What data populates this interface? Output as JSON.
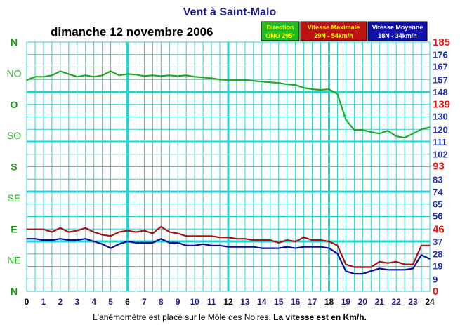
{
  "chart_data": {
    "type": "line",
    "title": "Vent à Saint-Malo",
    "date": "dimanche 12 novembre 2006",
    "footer": "L'anémomètre est placé sur le Môle des Noires.",
    "footer_bold": "La vitesse est en Km/h.",
    "x_ticks": [
      "0",
      "1",
      "2",
      "3",
      "4",
      "5",
      "6",
      "7",
      "8",
      "9",
      "10",
      "11",
      "12",
      "13",
      "14",
      "15",
      "16",
      "17",
      "18",
      "19",
      "20",
      "21",
      "22",
      "23",
      "24"
    ],
    "xlim": [
      0,
      24
    ],
    "left_axis": {
      "ticks": [
        "N",
        "NE",
        "E",
        "SE",
        "S",
        "SO",
        "O",
        "NO",
        "N"
      ],
      "major": [
        "N",
        "E",
        "S",
        "O",
        "N"
      ]
    },
    "right_axis": {
      "ylim": [
        0,
        185
      ],
      "ticks": [
        "0",
        "9",
        "19",
        "28",
        "37",
        "46",
        "56",
        "65",
        "74",
        "83",
        "93",
        "102",
        "111",
        "120",
        "130",
        "139",
        "148",
        "157",
        "167",
        "176",
        "185"
      ],
      "red_ticks": [
        "0",
        "46",
        "93",
        "139",
        "185"
      ]
    },
    "legend": [
      {
        "title": "Direction",
        "value": "ONO 295°",
        "bg": "#22bb22",
        "fg": "#ffff00"
      },
      {
        "title": "Vitesse Maximale",
        "value": "29N - 54km/h",
        "bg": "#bb1111",
        "fg": "#ffff00"
      },
      {
        "title": "Vitesse Moyenne",
        "value": "18N - 34km/h",
        "bg": "#1111aa",
        "fg": "#ffffff"
      }
    ],
    "colors": {
      "direction": "#22a822",
      "max": "#aa1111",
      "mean": "#0a0a99",
      "grid": "#33cccc",
      "grid_major": "#22d4d4"
    },
    "series": [
      {
        "name": "Direction",
        "unit": "degrees",
        "x": [
          0,
          0.5,
          1,
          1.5,
          2,
          2.5,
          3,
          3.5,
          4,
          4.5,
          5,
          5.5,
          6,
          6.5,
          7,
          7.5,
          8,
          8.5,
          9,
          9.5,
          10,
          10.5,
          11,
          11.5,
          12,
          12.5,
          13,
          13.5,
          14,
          14.5,
          15,
          15.5,
          16,
          16.5,
          17,
          17.5,
          18,
          18.5,
          19,
          19.5,
          20,
          20.5,
          21,
          21.5,
          22,
          22.5,
          23,
          23.5,
          24
        ],
        "values": [
          305,
          310,
          310,
          312,
          318,
          314,
          310,
          312,
          310,
          312,
          318,
          312,
          314,
          313,
          311,
          312,
          311,
          312,
          311,
          312,
          310,
          309,
          308,
          306,
          305,
          305,
          305,
          304,
          303,
          302,
          301,
          299,
          298,
          294,
          292,
          291,
          292,
          285,
          248,
          233,
          233,
          230,
          228,
          232,
          224,
          222,
          228,
          234,
          237
        ]
      },
      {
        "name": "Vitesse Maximale",
        "unit": "km/h",
        "x": [
          0,
          0.5,
          1,
          1.5,
          2,
          2.5,
          3,
          3.5,
          4,
          4.5,
          5,
          5.5,
          6,
          6.5,
          7,
          7.5,
          8,
          8.5,
          9,
          9.5,
          10,
          10.5,
          11,
          11.5,
          12,
          12.5,
          13,
          13.5,
          14,
          14.5,
          15,
          15.5,
          16,
          16.5,
          17,
          17.5,
          18,
          18.5,
          19,
          19.5,
          20,
          20.5,
          21,
          21.5,
          22,
          22.5,
          23,
          23.5,
          24
        ],
        "values": [
          46,
          46,
          46,
          44,
          47,
          44,
          45,
          47,
          44,
          42,
          41,
          44,
          45,
          44,
          45,
          43,
          48,
          44,
          43,
          41,
          41,
          41,
          41,
          40,
          40,
          39,
          39,
          38,
          38,
          38,
          36,
          38,
          37,
          40,
          38,
          38,
          37,
          34,
          20,
          18,
          18,
          18,
          22,
          21,
          22,
          20,
          20,
          34,
          34
        ]
      },
      {
        "name": "Vitesse Moyenne",
        "unit": "km/h",
        "x": [
          0,
          0.5,
          1,
          1.5,
          2,
          2.5,
          3,
          3.5,
          4,
          4.5,
          5,
          5.5,
          6,
          6.5,
          7,
          7.5,
          8,
          8.5,
          9,
          9.5,
          10,
          10.5,
          11,
          11.5,
          12,
          12.5,
          13,
          13.5,
          14,
          14.5,
          15,
          15.5,
          16,
          16.5,
          17,
          17.5,
          18,
          18.5,
          19,
          19.5,
          20,
          20.5,
          21,
          21.5,
          22,
          22.5,
          23,
          23.5,
          24
        ],
        "values": [
          39,
          39,
          38,
          38,
          39,
          38,
          38,
          39,
          37,
          35,
          32,
          35,
          37,
          36,
          36,
          36,
          39,
          36,
          36,
          34,
          34,
          35,
          34,
          34,
          33,
          33,
          33,
          33,
          32,
          32,
          32,
          33,
          32,
          33,
          33,
          33,
          32,
          28,
          15,
          13,
          13,
          15,
          17,
          16,
          16,
          16,
          17,
          27,
          24
        ]
      }
    ]
  }
}
